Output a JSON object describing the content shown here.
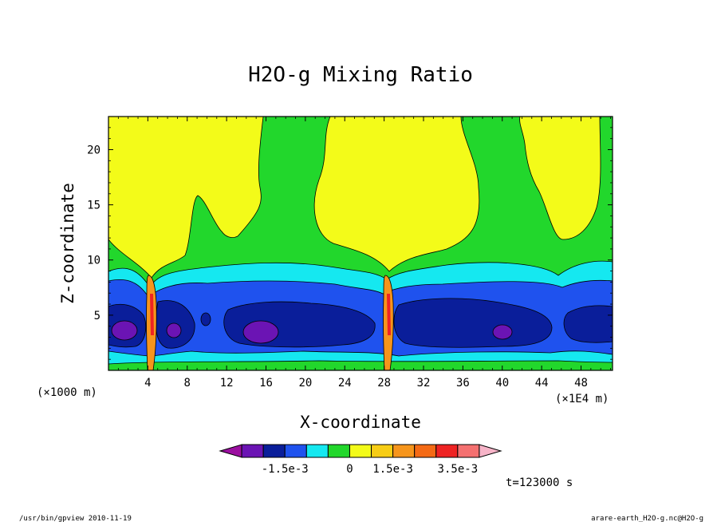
{
  "chart_data": {
    "type": "contour",
    "title": "H2O-g Mixing Ratio",
    "xlabel": "X-coordinate",
    "ylabel": "Z-coordinate",
    "x_unit_left": "(×1000 m)",
    "x_unit_right": "(×1E4 m)",
    "xlim": [
      0,
      51.2
    ],
    "ylim": [
      0,
      23
    ],
    "xticks": [
      "4",
      "8",
      "12",
      "16",
      "20",
      "24",
      "28",
      "32",
      "36",
      "40",
      "44",
      "48"
    ],
    "yticks": [
      "5",
      "10",
      "15",
      "20"
    ],
    "colorbar": {
      "colors": [
        "#9b0fa0",
        "#6b14b4",
        "#0a1e9a",
        "#1f52ee",
        "#15e8f0",
        "#22d72c",
        "#f3fb19",
        "#f7cd15",
        "#f6951c",
        "#f46a15",
        "#ee2323",
        "#f47070",
        "#f7b4c8"
      ],
      "tick_labels": [
        "-1.5e-3",
        "0",
        "1.5e-3",
        "3.5e-3"
      ]
    },
    "time_label": "t=123000 s"
  },
  "footer": {
    "left": "/usr/bin/gpview  2010-11-19",
    "right": "arare-earth_H2O-g.nc@H2O-g"
  }
}
